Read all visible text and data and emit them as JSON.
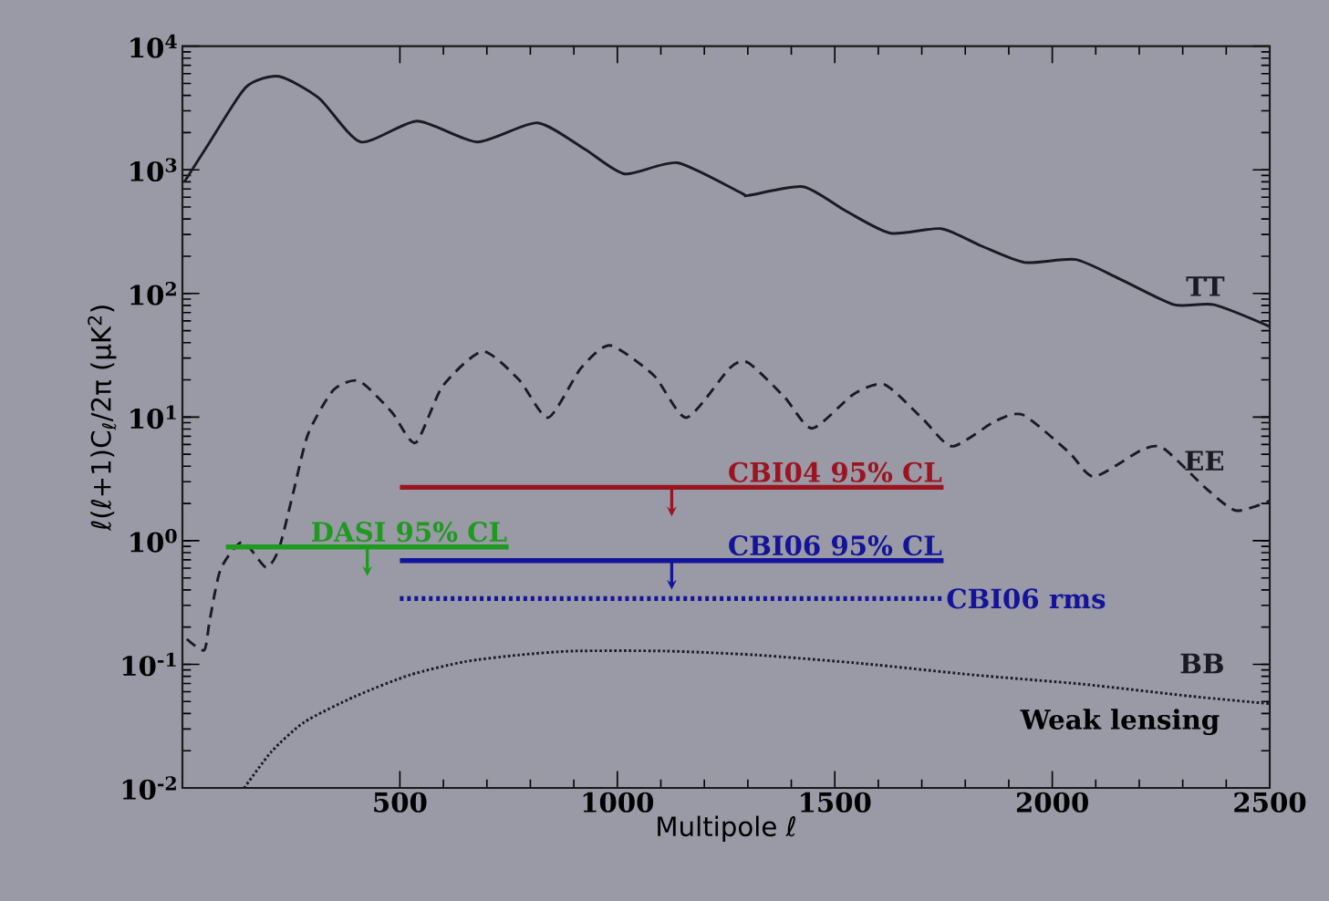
{
  "chart_data": {
    "type": "line",
    "xlabel": "Multipole ℓ",
    "ylabel": "ℓ(ℓ+1)C$_{ℓ}$/2π (μK$^{2}$)",
    "log": "y",
    "xlim": [
      0,
      2500
    ],
    "ylim": [
      0.01,
      10000
    ],
    "xticks": [
      500,
      1000,
      1500,
      2000,
      2500
    ],
    "yticks": [
      {
        "value": 0.01,
        "label": "10$^{-2}$"
      },
      {
        "value": 0.1,
        "label": "10$^{-1}$"
      },
      {
        "value": 1,
        "label": "10$^{0}$"
      },
      {
        "value": 10,
        "label": "10$^{1}$"
      },
      {
        "value": 100,
        "label": "10$^{2}$"
      },
      {
        "value": 1000,
        "label": "10$^{3}$"
      },
      {
        "value": 10000,
        "label": "10$^{4}$"
      }
    ],
    "annotations": [
      "Weak lensing"
    ],
    "series": [
      {
        "name": "TT",
        "color": "#1a1a24",
        "line_style": "solid",
        "x": [
          4,
          63,
          146,
          222,
          314,
          410,
          540,
          678,
          816,
          925,
          1017,
          1138,
          1285,
          1301,
          1427,
          1527,
          1628,
          1745,
          1837,
          1937,
          2054,
          2155,
          2280,
          2372,
          2500
        ],
        "values": [
          794,
          1680,
          4660,
          5700,
          3800,
          1680,
          2480,
          1680,
          2400,
          1470,
          927,
          1140,
          650,
          620,
          730,
          461,
          307,
          334,
          242,
          178,
          188,
          131,
          81,
          81,
          54
        ]
      },
      {
        "name": "EE",
        "color": "#1a1a24",
        "line_style": "dashed",
        "x": [
          10,
          50,
          63,
          88,
          138,
          192,
          222,
          255,
          289,
          347,
          406,
          481,
          536,
          598,
          690,
          774,
          841,
          916,
          983,
          1084,
          1159,
          1259,
          1301,
          1385,
          1448,
          1544,
          1615,
          1703,
          1770,
          1870,
          1933,
          2038,
          2096,
          2205,
          2255,
          2356,
          2423,
          2500
        ],
        "values": [
          0.16,
          0.13,
          0.23,
          0.59,
          0.98,
          0.61,
          0.86,
          2.46,
          7.3,
          16.5,
          19.6,
          11,
          6.2,
          17.7,
          34,
          20,
          9.9,
          24.8,
          38,
          21.7,
          9.9,
          25,
          27.5,
          14.4,
          8.1,
          15.4,
          18.3,
          9.6,
          5.8,
          9.3,
          10.4,
          5.2,
          3.3,
          5.4,
          5.6,
          2.6,
          1.75,
          2.1
        ]
      },
      {
        "name": "BB",
        "color": "#1a1a24",
        "line_style": "dotted",
        "x": [
          142,
          205,
          280,
          397,
          523,
          649,
          774,
          900,
          1109,
          1318,
          1569,
          1820,
          2071,
          2322,
          2500
        ],
        "values": [
          0.01,
          0.0197,
          0.034,
          0.055,
          0.082,
          0.105,
          0.119,
          0.128,
          0.128,
          0.119,
          0.101,
          0.082,
          0.069,
          0.055,
          0.048
        ]
      },
      {
        "name": "CBI04 95% CL",
        "color": "#9b1520",
        "line_style": "solid",
        "x": [
          500,
          1750
        ],
        "values": [
          2.7,
          2.7
        ]
      },
      {
        "name": "DASI 95% CL",
        "color": "#1e9a1e",
        "line_style": "solid",
        "x": [
          100,
          750
        ],
        "values": [
          0.89,
          0.89
        ]
      },
      {
        "name": "CBI06 95% CL",
        "color": "#14149a",
        "line_style": "solid",
        "x": [
          500,
          1750
        ],
        "values": [
          0.69,
          0.69
        ]
      },
      {
        "name": "CBI06 rms",
        "color": "#14149a",
        "line_style": "dotted",
        "x": [
          500,
          1750
        ],
        "values": [
          0.34,
          0.34
        ]
      }
    ]
  }
}
